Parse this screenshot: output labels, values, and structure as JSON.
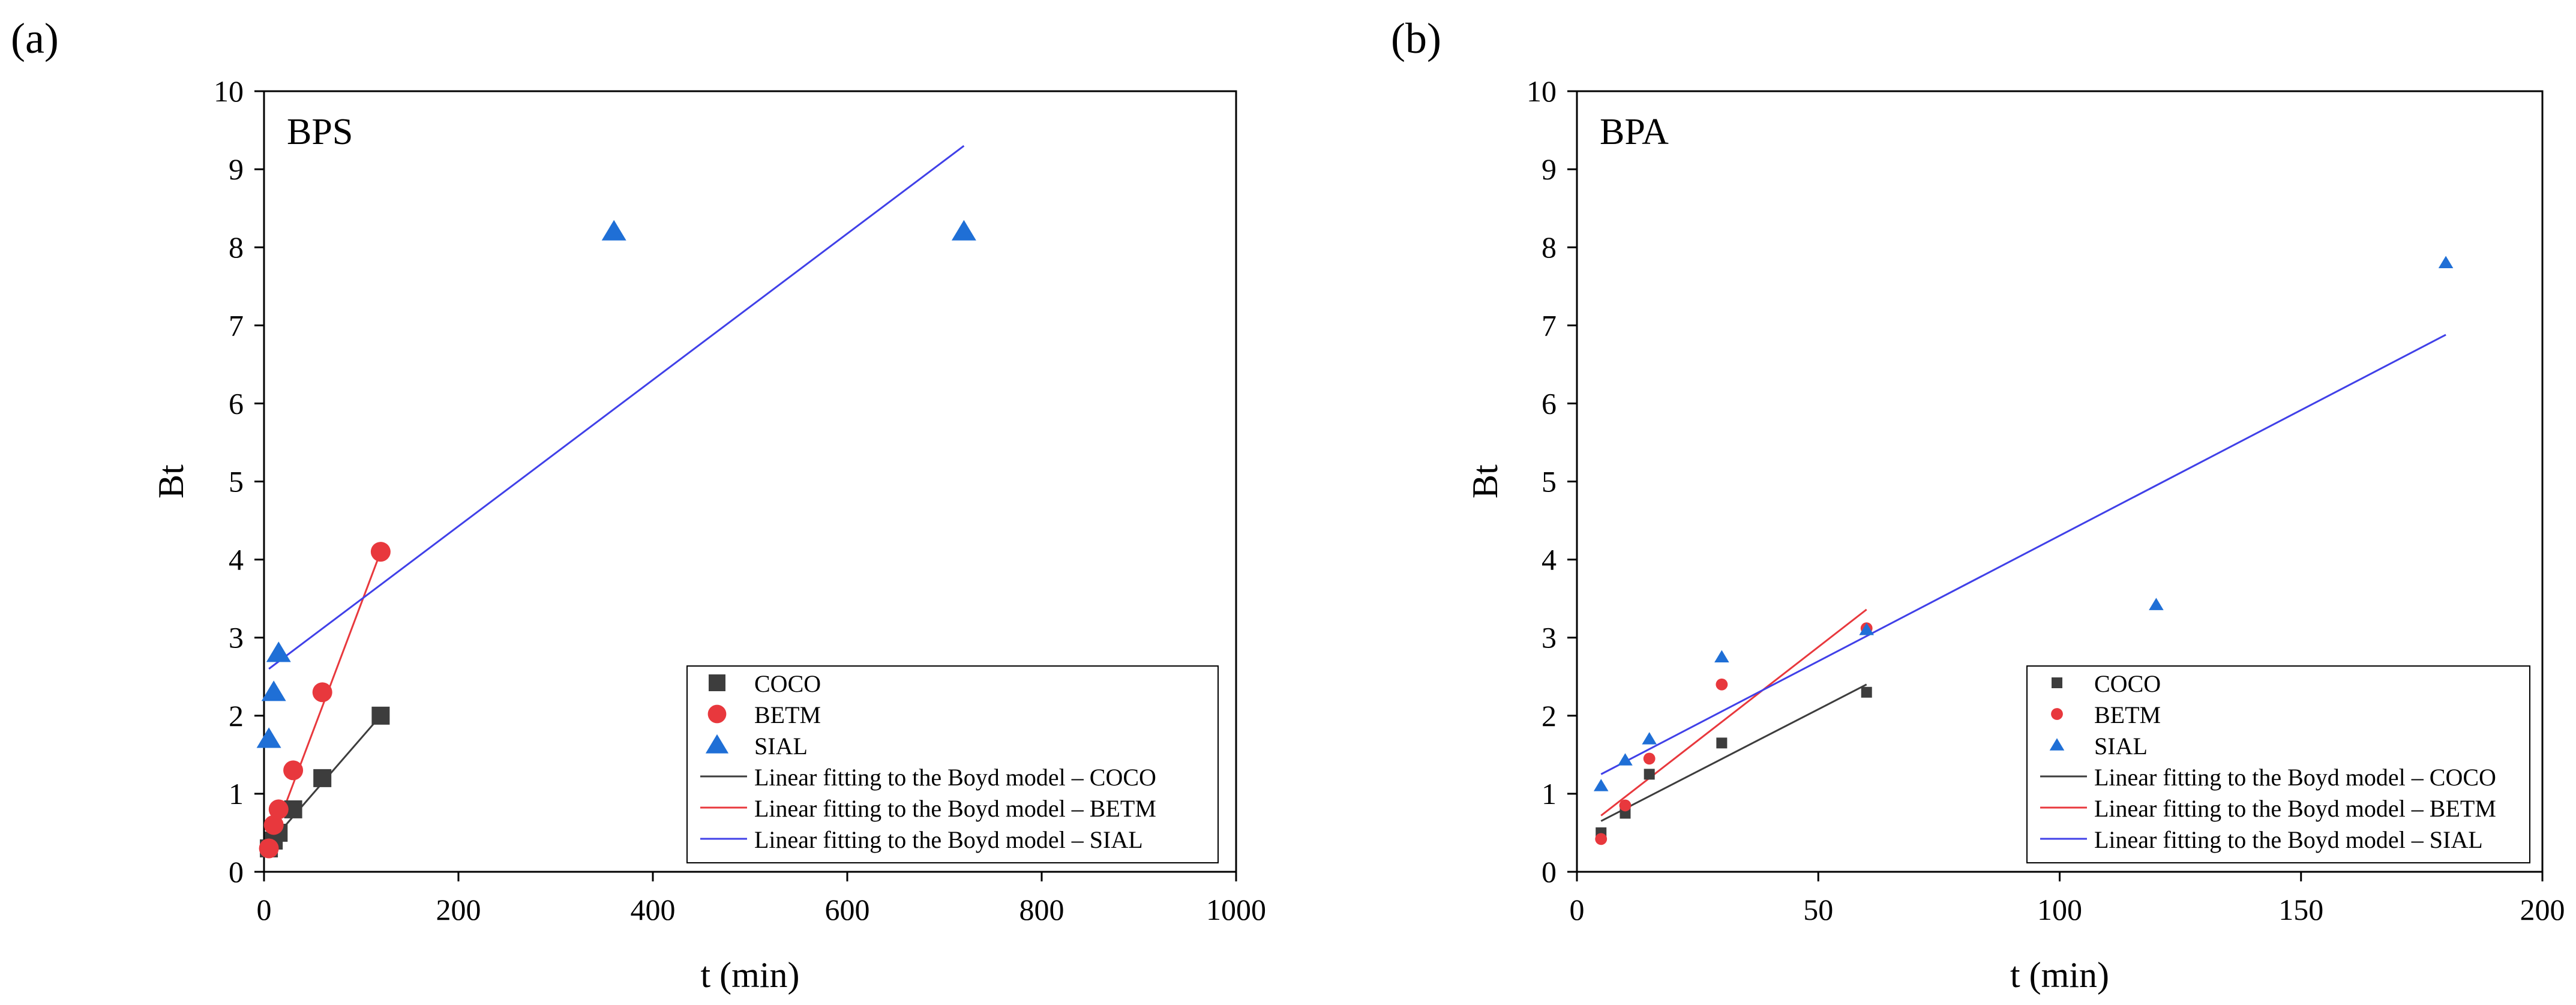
{
  "chart_data": [
    {
      "type": "scatter",
      "panel_label": "(a)",
      "title": "BPS",
      "xlabel": "t (min)",
      "ylabel": "Bt",
      "xlim": [
        0,
        1000
      ],
      "ylim": [
        0,
        10
      ],
      "xticks": [
        0,
        200,
        400,
        600,
        800,
        1000
      ],
      "yticks": [
        0,
        1,
        2,
        3,
        4,
        5,
        6,
        7,
        8,
        9,
        10
      ],
      "legend_position": "bottom-right",
      "series": [
        {
          "name": "COCO",
          "kind": "scatter",
          "marker": "square",
          "color": "#3d3d3d",
          "x": [
            5,
            10,
            15,
            30,
            60,
            120
          ],
          "y": [
            0.3,
            0.4,
            0.5,
            0.8,
            1.2,
            2.0
          ]
        },
        {
          "name": "BETM",
          "kind": "scatter",
          "marker": "circle",
          "color": "#e8383d",
          "x": [
            5,
            10,
            15,
            30,
            60,
            120
          ],
          "y": [
            0.3,
            0.6,
            0.8,
            1.3,
            2.3,
            4.1
          ]
        },
        {
          "name": "SIAL",
          "kind": "scatter",
          "marker": "triangle",
          "color": "#1f6fd6",
          "x": [
            5,
            10,
            15,
            360,
            720
          ],
          "y": [
            1.7,
            2.3,
            2.8,
            8.2,
            8.2
          ]
        },
        {
          "name": "Linear fitting to the Boyd model – COCO",
          "kind": "line",
          "color": "#3d3d3d",
          "x": [
            5,
            120
          ],
          "y": [
            0.35,
            2.0
          ]
        },
        {
          "name": "Linear fitting to the Boyd model – BETM",
          "kind": "line",
          "color": "#e8383d",
          "x": [
            5,
            120
          ],
          "y": [
            0.3,
            4.1
          ]
        },
        {
          "name": "Linear fitting to the Boyd model – SIAL",
          "kind": "line",
          "color": "#4040e8",
          "x": [
            5,
            720
          ],
          "y": [
            2.6,
            9.3
          ]
        }
      ]
    },
    {
      "type": "scatter",
      "panel_label": "(b)",
      "title": "BPA",
      "xlabel": "t (min)",
      "ylabel": "Bt",
      "xlim": [
        0,
        200
      ],
      "ylim": [
        0,
        10
      ],
      "xticks": [
        0,
        50,
        100,
        150,
        200
      ],
      "yticks": [
        0,
        1,
        2,
        3,
        4,
        5,
        6,
        7,
        8,
        9,
        10
      ],
      "legend_position": "bottom-right",
      "series": [
        {
          "name": "COCO",
          "kind": "scatter",
          "marker": "square",
          "color": "#3d3d3d",
          "x": [
            5,
            10,
            15,
            30,
            60
          ],
          "y": [
            0.5,
            0.75,
            1.25,
            1.65,
            2.3
          ]
        },
        {
          "name": "BETM",
          "kind": "scatter",
          "marker": "circle",
          "color": "#e8383d",
          "x": [
            5,
            10,
            15,
            30,
            60
          ],
          "y": [
            0.42,
            0.85,
            1.45,
            2.4,
            3.12
          ]
        },
        {
          "name": "SIAL",
          "kind": "scatter",
          "marker": "triangle",
          "color": "#1f6fd6",
          "x": [
            5,
            10,
            15,
            30,
            60,
            120,
            180
          ],
          "y": [
            1.1,
            1.43,
            1.7,
            2.75,
            3.1,
            3.42,
            7.8
          ]
        },
        {
          "name": "Linear fitting to the Boyd model – COCO",
          "kind": "line",
          "color": "#3d3d3d",
          "x": [
            5,
            60
          ],
          "y": [
            0.65,
            2.4
          ]
        },
        {
          "name": "Linear fitting to the Boyd model – BETM",
          "kind": "line",
          "color": "#e8383d",
          "x": [
            5,
            60
          ],
          "y": [
            0.72,
            3.36
          ]
        },
        {
          "name": "Linear fitting to the Boyd model – SIAL",
          "kind": "line",
          "color": "#4040e8",
          "x": [
            5,
            180
          ],
          "y": [
            1.25,
            6.88
          ]
        }
      ]
    }
  ]
}
